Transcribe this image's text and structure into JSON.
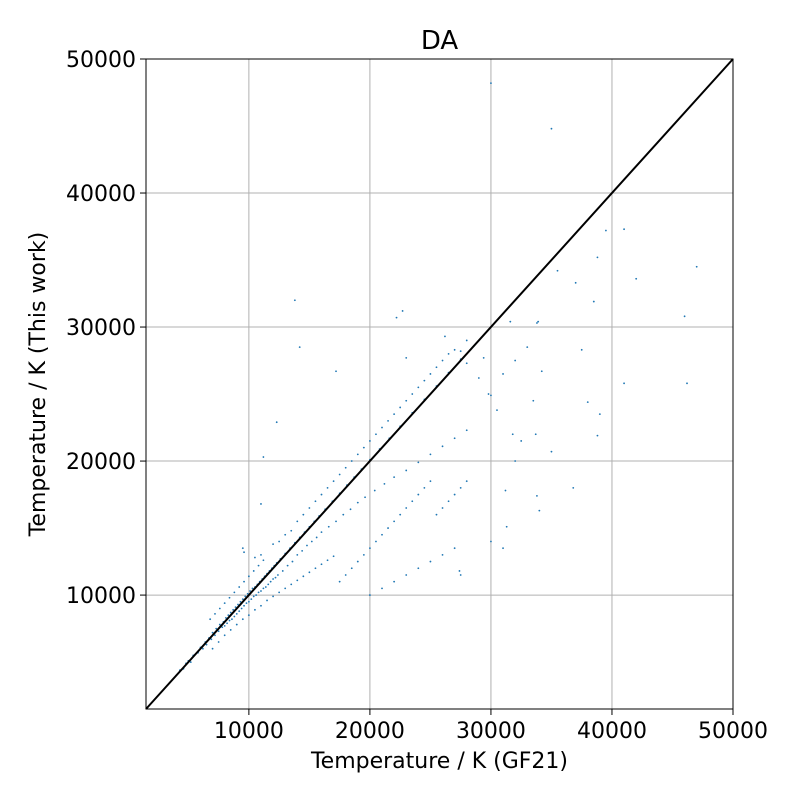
{
  "chart_data": {
    "type": "scatter",
    "title": "DA",
    "xlabel": "Temperature / K (GF21)",
    "ylabel": "Temperature / K (This work)",
    "xlim": [
      1500,
      50000
    ],
    "ylim": [
      1500,
      50000
    ],
    "xticks": [
      10000,
      20000,
      30000,
      40000,
      50000
    ],
    "yticks": [
      10000,
      20000,
      30000,
      40000,
      50000
    ],
    "xtick_labels": [
      "10000",
      "20000",
      "30000",
      "40000",
      "50000"
    ],
    "ytick_labels": [
      "10000",
      "20000",
      "30000",
      "40000",
      "50000"
    ],
    "grid": true,
    "reference_line": {
      "x": [
        1500,
        50000
      ],
      "y": [
        1500,
        50000
      ],
      "color": "#000000"
    },
    "point_color": "#1f77b4",
    "series": [
      {
        "points": [
          [
            4000,
            4000
          ],
          [
            4300,
            4400
          ],
          [
            4600,
            4500
          ],
          [
            4800,
            4900
          ],
          [
            5000,
            5100
          ],
          [
            5200,
            5000
          ],
          [
            5400,
            5500
          ],
          [
            5600,
            5600
          ],
          [
            5800,
            5700
          ],
          [
            6000,
            6100
          ],
          [
            6200,
            6000
          ],
          [
            6400,
            6500
          ],
          [
            6500,
            6300
          ],
          [
            6700,
            6800
          ],
          [
            6900,
            6700
          ],
          [
            7000,
            7200
          ],
          [
            7200,
            7000
          ],
          [
            7300,
            7500
          ],
          [
            7500,
            7300
          ],
          [
            7600,
            7800
          ],
          [
            7800,
            7600
          ],
          [
            7900,
            8000
          ],
          [
            8000,
            7700
          ],
          [
            8100,
            8300
          ],
          [
            8200,
            7900
          ],
          [
            8300,
            8500
          ],
          [
            8400,
            8100
          ],
          [
            8500,
            8700
          ],
          [
            8600,
            8200
          ],
          [
            8700,
            8900
          ],
          [
            8800,
            8400
          ],
          [
            8900,
            9100
          ],
          [
            9000,
            8600
          ],
          [
            9100,
            9300
          ],
          [
            9200,
            8800
          ],
          [
            9300,
            9500
          ],
          [
            9400,
            9000
          ],
          [
            9500,
            9700
          ],
          [
            9600,
            9200
          ],
          [
            9700,
            9900
          ],
          [
            9800,
            9400
          ],
          [
            9900,
            10100
          ],
          [
            10000,
            9500
          ],
          [
            10100,
            10300
          ],
          [
            10200,
            9700
          ],
          [
            10300,
            10500
          ],
          [
            10400,
            9900
          ],
          [
            10500,
            10600
          ],
          [
            10600,
            10000
          ],
          [
            10700,
            10800
          ],
          [
            10800,
            10200
          ],
          [
            10900,
            11000
          ],
          [
            11000,
            10300
          ],
          [
            11100,
            11200
          ],
          [
            11200,
            10500
          ],
          [
            11300,
            11400
          ],
          [
            11400,
            10600
          ],
          [
            11500,
            11600
          ],
          [
            11600,
            10800
          ],
          [
            11700,
            11800
          ],
          [
            11800,
            11000
          ],
          [
            11900,
            12000
          ],
          [
            12000,
            11200
          ],
          [
            12100,
            12200
          ],
          [
            12200,
            11300
          ],
          [
            12300,
            12400
          ],
          [
            12400,
            11500
          ],
          [
            12600,
            12700
          ],
          [
            12800,
            11800
          ],
          [
            13000,
            13100
          ],
          [
            13200,
            12200
          ],
          [
            13400,
            13500
          ],
          [
            13600,
            12500
          ],
          [
            13800,
            13900
          ],
          [
            14000,
            13000
          ],
          [
            14200,
            14300
          ],
          [
            14400,
            13300
          ],
          [
            14600,
            14700
          ],
          [
            14800,
            13700
          ],
          [
            15000,
            15100
          ],
          [
            15200,
            14000
          ],
          [
            15400,
            15500
          ],
          [
            15600,
            14300
          ],
          [
            15800,
            15900
          ],
          [
            16000,
            14700
          ],
          [
            16300,
            16400
          ],
          [
            16600,
            15100
          ],
          [
            16900,
            17000
          ],
          [
            17200,
            15500
          ],
          [
            17500,
            17600
          ],
          [
            17800,
            16000
          ],
          [
            18100,
            18200
          ],
          [
            18400,
            16400
          ],
          [
            18700,
            18800
          ],
          [
            19000,
            16900
          ],
          [
            19300,
            19400
          ],
          [
            19600,
            17300
          ],
          [
            20000,
            20100
          ],
          [
            20400,
            17800
          ],
          [
            20800,
            20900
          ],
          [
            21200,
            18300
          ],
          [
            21600,
            21700
          ],
          [
            22000,
            18800
          ],
          [
            22500,
            22600
          ],
          [
            23000,
            19300
          ],
          [
            23500,
            23600
          ],
          [
            24000,
            19900
          ],
          [
            24500,
            24600
          ],
          [
            25000,
            20500
          ],
          [
            25500,
            25600
          ],
          [
            26000,
            21100
          ],
          [
            26500,
            26600
          ],
          [
            27000,
            21700
          ],
          [
            27500,
            27600
          ],
          [
            28000,
            22300
          ],
          [
            7000,
            6000
          ],
          [
            7500,
            6500
          ],
          [
            8000,
            7000
          ],
          [
            8500,
            7400
          ],
          [
            9000,
            7800
          ],
          [
            9500,
            8200
          ],
          [
            10000,
            8500
          ],
          [
            10500,
            8900
          ],
          [
            11000,
            9200
          ],
          [
            11500,
            9600
          ],
          [
            12000,
            9900
          ],
          [
            12500,
            10200
          ],
          [
            13000,
            10500
          ],
          [
            13500,
            10800
          ],
          [
            14000,
            11100
          ],
          [
            14500,
            11400
          ],
          [
            15000,
            11700
          ],
          [
            15500,
            12000
          ],
          [
            16000,
            12300
          ],
          [
            16500,
            12600
          ],
          [
            17000,
            12900
          ],
          [
            17500,
            11000
          ],
          [
            18000,
            11500
          ],
          [
            18500,
            12000
          ],
          [
            19000,
            12500
          ],
          [
            19500,
            13000
          ],
          [
            20000,
            13500
          ],
          [
            20500,
            14000
          ],
          [
            21000,
            14500
          ],
          [
            21500,
            15000
          ],
          [
            22000,
            15500
          ],
          [
            22500,
            16000
          ],
          [
            23000,
            16500
          ],
          [
            23500,
            17000
          ],
          [
            24000,
            17500
          ],
          [
            24500,
            18000
          ],
          [
            25000,
            18500
          ],
          [
            25500,
            16000
          ],
          [
            26000,
            16500
          ],
          [
            26500,
            17000
          ],
          [
            27000,
            17500
          ],
          [
            27500,
            18000
          ],
          [
            28000,
            18500
          ],
          [
            20000,
            10000
          ],
          [
            21000,
            10500
          ],
          [
            22000,
            11000
          ],
          [
            23000,
            11500
          ],
          [
            24000,
            12000
          ],
          [
            25000,
            12500
          ],
          [
            26000,
            13000
          ],
          [
            27000,
            13500
          ],
          [
            27500,
            11500
          ],
          [
            27400,
            11800
          ],
          [
            13500,
            14800
          ],
          [
            14000,
            15500
          ],
          [
            14500,
            16000
          ],
          [
            15000,
            16500
          ],
          [
            15500,
            17000
          ],
          [
            16000,
            17500
          ],
          [
            16500,
            18000
          ],
          [
            17000,
            18500
          ],
          [
            17500,
            19000
          ],
          [
            18000,
            19500
          ],
          [
            18500,
            20000
          ],
          [
            19000,
            20500
          ],
          [
            19500,
            21000
          ],
          [
            20000,
            21500
          ],
          [
            20500,
            22000
          ],
          [
            21000,
            22500
          ],
          [
            21500,
            23000
          ],
          [
            22000,
            23500
          ],
          [
            22500,
            24000
          ],
          [
            23000,
            24500
          ],
          [
            23500,
            25000
          ],
          [
            24000,
            25500
          ],
          [
            24500,
            26000
          ],
          [
            25000,
            26500
          ],
          [
            25500,
            27000
          ],
          [
            26000,
            27500
          ],
          [
            26500,
            28000
          ],
          [
            27000,
            28300
          ],
          [
            28000,
            29000
          ],
          [
            6800,
            8200
          ],
          [
            7200,
            8600
          ],
          [
            7600,
            9000
          ],
          [
            8000,
            9400
          ],
          [
            8400,
            9800
          ],
          [
            8800,
            10200
          ],
          [
            9200,
            10600
          ],
          [
            9600,
            11000
          ],
          [
            10000,
            11400
          ],
          [
            10400,
            11800
          ],
          [
            10800,
            12200
          ],
          [
            11200,
            12600
          ],
          [
            9500,
            13500
          ],
          [
            9600,
            13200
          ],
          [
            10500,
            12800
          ],
          [
            11000,
            13000
          ],
          [
            12000,
            13800
          ],
          [
            12500,
            14000
          ],
          [
            13000,
            14500
          ],
          [
            13800,
            32000
          ],
          [
            14200,
            28500
          ],
          [
            17200,
            26700
          ],
          [
            12300,
            22900
          ],
          [
            11200,
            20300
          ],
          [
            11000,
            16800
          ],
          [
            22200,
            30700
          ],
          [
            22700,
            31200
          ],
          [
            23000,
            27700
          ],
          [
            26200,
            29300
          ],
          [
            27500,
            28200
          ],
          [
            28000,
            27300
          ],
          [
            29000,
            26200
          ],
          [
            29800,
            25000
          ],
          [
            30000,
            24900
          ],
          [
            31000,
            26500
          ],
          [
            32000,
            27500
          ],
          [
            33000,
            28500
          ],
          [
            33800,
            30300
          ],
          [
            33900,
            30400
          ],
          [
            33500,
            24500
          ],
          [
            33700,
            22000
          ],
          [
            31800,
            22000
          ],
          [
            32500,
            21500
          ],
          [
            32000,
            20000
          ],
          [
            34200,
            26700
          ],
          [
            31200,
            17800
          ],
          [
            31300,
            15100
          ],
          [
            31000,
            13500
          ],
          [
            30000,
            14000
          ],
          [
            33800,
            17400
          ],
          [
            34000,
            16300
          ],
          [
            35000,
            20700
          ],
          [
            35500,
            34200
          ],
          [
            37000,
            33300
          ],
          [
            37500,
            28300
          ],
          [
            38000,
            24400
          ],
          [
            38500,
            31900
          ],
          [
            38800,
            35200
          ],
          [
            39000,
            23500
          ],
          [
            39500,
            37200
          ],
          [
            38800,
            21900
          ],
          [
            41000,
            37300
          ],
          [
            41000,
            25800
          ],
          [
            42000,
            33600
          ],
          [
            46000,
            30800
          ],
          [
            46200,
            25800
          ],
          [
            47000,
            34500
          ],
          [
            36800,
            18000
          ],
          [
            30000,
            48200
          ],
          [
            35000,
            44800
          ],
          [
            31600,
            30400
          ],
          [
            32200,
            32200
          ],
          [
            30500,
            23800
          ],
          [
            29400,
            27700
          ],
          [
            28600,
            28600
          ]
        ]
      }
    ]
  }
}
